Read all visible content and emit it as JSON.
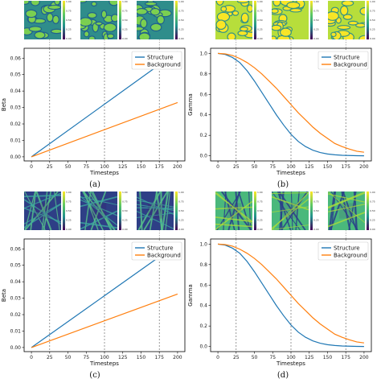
{
  "chart_data": [
    {
      "id": "a",
      "type": "line",
      "caption": "(a)",
      "xlabel": "Timesteps",
      "ylabel": "Beta",
      "xlim": [
        -10,
        210
      ],
      "ylim": [
        -0.0025,
        0.066
      ],
      "xticks": [
        "0",
        "25",
        "50",
        "75",
        "100",
        "125",
        "150",
        "175",
        "200"
      ],
      "yticks": [
        "0.00",
        "0.01",
        "0.02",
        "0.03",
        "0.04",
        "0.05",
        "0.06"
      ],
      "vlines": [
        25,
        100,
        175
      ],
      "legend": "top-right",
      "series": [
        {
          "name": "Structure",
          "color": "#1f77b4",
          "x": [
            0,
            200
          ],
          "y": [
            0.0,
            0.064
          ]
        },
        {
          "name": "Background",
          "color": "#ff7f0e",
          "x": [
            0,
            200
          ],
          "y": [
            0.0,
            0.033
          ]
        }
      ],
      "image_style": "green-cells",
      "colorbar_ticks": [
        "1.00",
        "0.75",
        "0.50",
        "0.25",
        "0.00"
      ]
    },
    {
      "id": "b",
      "type": "line",
      "caption": "(b)",
      "xlabel": "Timesteps",
      "ylabel": "Gamma",
      "xlim": [
        -10,
        210
      ],
      "ylim": [
        -0.05,
        1.05
      ],
      "xticks": [
        "0",
        "25",
        "50",
        "75",
        "100",
        "125",
        "150",
        "175",
        "200"
      ],
      "yticks": [
        "0.0",
        "0.2",
        "0.4",
        "0.6",
        "0.8",
        "1.0"
      ],
      "vlines": [
        25,
        100,
        175
      ],
      "legend": "top-right",
      "series": [
        {
          "name": "Structure",
          "color": "#1f77b4",
          "x": [
            0,
            10,
            20,
            30,
            40,
            50,
            60,
            70,
            80,
            90,
            100,
            110,
            120,
            130,
            140,
            150,
            160,
            170,
            180,
            190,
            200
          ],
          "y": [
            1.0,
            0.99,
            0.96,
            0.91,
            0.83,
            0.73,
            0.62,
            0.51,
            0.4,
            0.3,
            0.21,
            0.14,
            0.09,
            0.055,
            0.032,
            0.018,
            0.01,
            0.005,
            0.003,
            0.001,
            0.0
          ]
        },
        {
          "name": "Background",
          "color": "#ff7f0e",
          "x": [
            0,
            10,
            20,
            30,
            40,
            50,
            60,
            70,
            80,
            90,
            100,
            110,
            120,
            130,
            140,
            150,
            160,
            170,
            180,
            190,
            200
          ],
          "y": [
            1.0,
            0.995,
            0.98,
            0.95,
            0.91,
            0.86,
            0.8,
            0.73,
            0.66,
            0.58,
            0.5,
            0.42,
            0.35,
            0.28,
            0.22,
            0.17,
            0.12,
            0.09,
            0.065,
            0.045,
            0.035
          ]
        }
      ],
      "image_style": "yellow-cells",
      "colorbar_ticks": [
        "1.00",
        "0.75",
        "0.50",
        "0.25",
        "0.00"
      ]
    },
    {
      "id": "c",
      "type": "line",
      "caption": "(c)",
      "xlabel": "Timesteps",
      "ylabel": "Beta",
      "xlim": [
        -10,
        210
      ],
      "ylim": [
        -0.0025,
        0.066
      ],
      "xticks": [
        "0",
        "25",
        "50",
        "75",
        "100",
        "125",
        "150",
        "175",
        "200"
      ],
      "yticks": [
        "0.00",
        "0.01",
        "0.02",
        "0.03",
        "0.04",
        "0.05",
        "0.06"
      ],
      "vlines": [
        25,
        100,
        175
      ],
      "legend": "top-right",
      "series": [
        {
          "name": "Structure",
          "color": "#1f77b4",
          "x": [
            0,
            200
          ],
          "y": [
            0.0,
            0.063
          ]
        },
        {
          "name": "Background",
          "color": "#ff7f0e",
          "x": [
            0,
            200
          ],
          "y": [
            0.0,
            0.0325
          ]
        }
      ],
      "image_style": "green-vessels",
      "colorbar_ticks": [
        "1.00",
        "0.75",
        "0.50",
        "0.25",
        "0.00"
      ]
    },
    {
      "id": "d",
      "type": "line",
      "caption": "(d)",
      "xlabel": "Timesteps",
      "ylabel": "Gamma",
      "xlim": [
        -10,
        210
      ],
      "ylim": [
        -0.05,
        1.05
      ],
      "xticks": [
        "0",
        "25",
        "50",
        "75",
        "100",
        "125",
        "150",
        "175",
        "200"
      ],
      "yticks": [
        "0.0",
        "0.2",
        "0.4",
        "0.6",
        "0.8",
        "1.0"
      ],
      "vlines": [
        25,
        100,
        175
      ],
      "legend": "top-right",
      "series": [
        {
          "name": "Structure",
          "color": "#1f77b4",
          "x": [
            0,
            10,
            20,
            30,
            40,
            50,
            60,
            70,
            80,
            90,
            100,
            110,
            120,
            130,
            140,
            150,
            160,
            170,
            180,
            190,
            200
          ],
          "y": [
            1.0,
            0.99,
            0.96,
            0.91,
            0.83,
            0.73,
            0.62,
            0.51,
            0.4,
            0.3,
            0.21,
            0.14,
            0.09,
            0.055,
            0.032,
            0.018,
            0.01,
            0.005,
            0.003,
            0.001,
            0.0
          ]
        },
        {
          "name": "Background",
          "color": "#ff7f0e",
          "x": [
            0,
            10,
            20,
            30,
            40,
            50,
            60,
            70,
            80,
            90,
            100,
            110,
            120,
            130,
            140,
            150,
            160,
            170,
            180,
            190,
            200
          ],
          "y": [
            1.0,
            0.995,
            0.98,
            0.95,
            0.91,
            0.86,
            0.8,
            0.73,
            0.66,
            0.58,
            0.5,
            0.42,
            0.35,
            0.28,
            0.22,
            0.17,
            0.12,
            0.09,
            0.065,
            0.045,
            0.035
          ]
        }
      ],
      "image_style": "yellow-vessels",
      "colorbar_ticks": [
        "1.00",
        "0.75",
        "0.50",
        "0.25",
        "0.00"
      ]
    }
  ]
}
